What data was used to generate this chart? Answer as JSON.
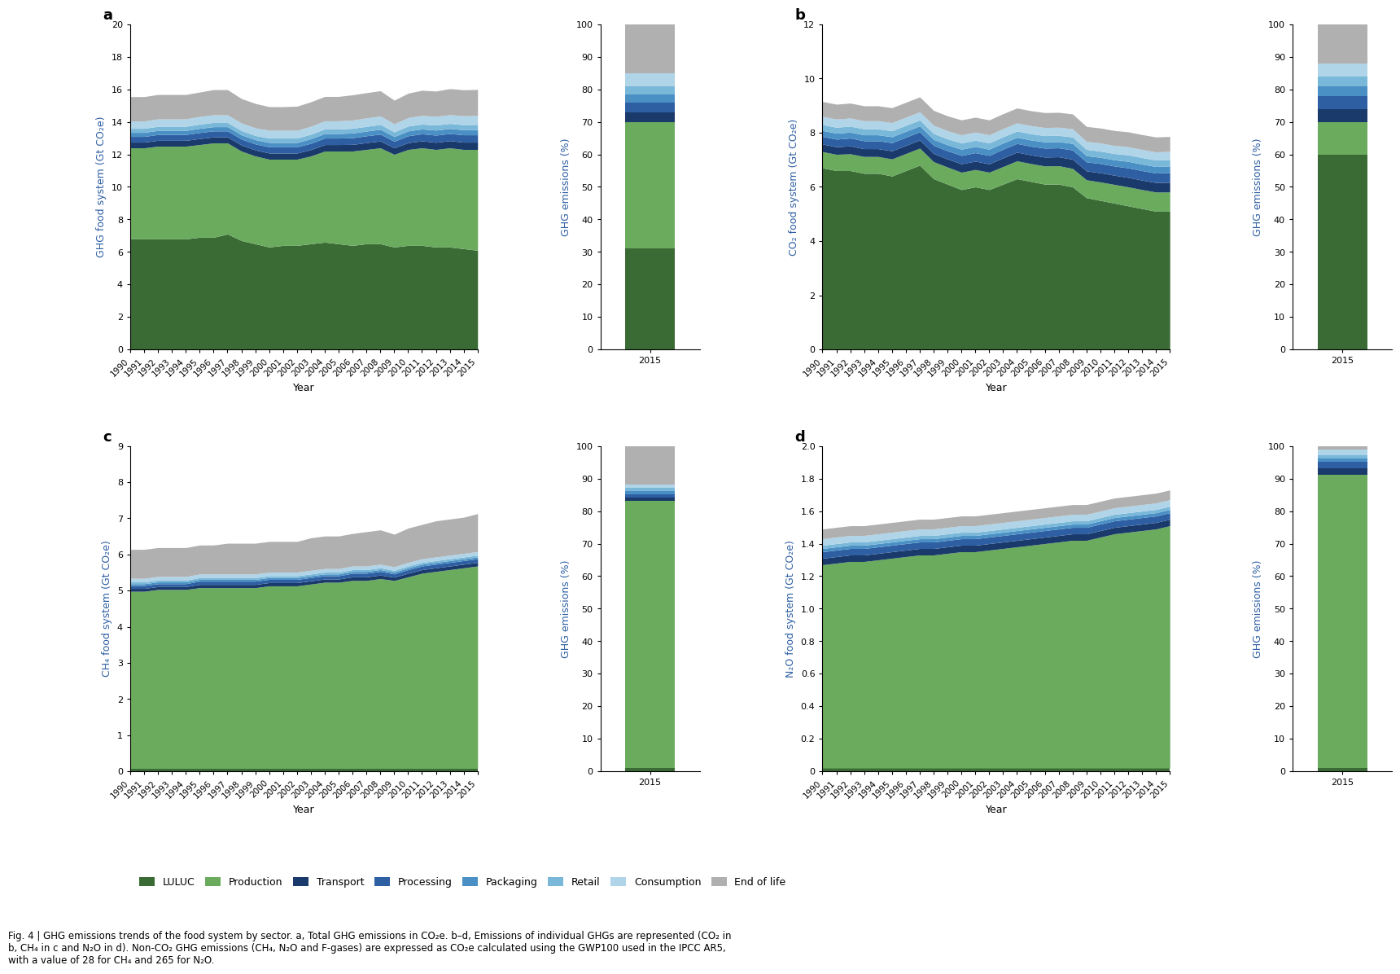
{
  "years": [
    1990,
    1991,
    1992,
    1993,
    1994,
    1995,
    1996,
    1997,
    1998,
    1999,
    2000,
    2001,
    2002,
    2003,
    2004,
    2005,
    2006,
    2007,
    2008,
    2009,
    2010,
    2011,
    2012,
    2013,
    2014,
    2015
  ],
  "sectors": [
    "LULUC",
    "Production",
    "Transport",
    "Processing",
    "Packaging",
    "Retail",
    "Consumption",
    "End of life"
  ],
  "colors": [
    "#3a6b35",
    "#6aab5e",
    "#1a3a6b",
    "#2e5fa3",
    "#4a90c4",
    "#7ab8d9",
    "#b0d4e8",
    "#b0b0b0"
  ],
  "panel_a": {
    "title": "a",
    "ylabel": "GHG food system (Gt CO₂e)",
    "ylim": [
      0,
      20
    ],
    "yticks": [
      0,
      2,
      4,
      6,
      8,
      10,
      12,
      14,
      16,
      18,
      20
    ],
    "data": [
      [
        6.8,
        6.8,
        6.8,
        6.8,
        6.8,
        6.9,
        6.9,
        7.1,
        6.7,
        6.5,
        6.3,
        6.4,
        6.4,
        6.5,
        6.6,
        6.5,
        6.4,
        6.5,
        6.5,
        6.3,
        6.4,
        6.4,
        6.3,
        6.3,
        6.2,
        6.1
      ],
      [
        5.6,
        5.6,
        5.7,
        5.7,
        5.7,
        5.7,
        5.8,
        5.6,
        5.5,
        5.4,
        5.4,
        5.3,
        5.3,
        5.4,
        5.6,
        5.7,
        5.8,
        5.8,
        5.9,
        5.7,
        5.9,
        6.0,
        6.0,
        6.1,
        6.1,
        6.2
      ],
      [
        0.35,
        0.35,
        0.36,
        0.36,
        0.36,
        0.37,
        0.37,
        0.37,
        0.37,
        0.37,
        0.38,
        0.38,
        0.38,
        0.39,
        0.4,
        0.4,
        0.41,
        0.42,
        0.42,
        0.4,
        0.42,
        0.43,
        0.44,
        0.44,
        0.45,
        0.45
      ],
      [
        0.35,
        0.35,
        0.36,
        0.36,
        0.36,
        0.37,
        0.37,
        0.37,
        0.37,
        0.37,
        0.38,
        0.38,
        0.38,
        0.39,
        0.4,
        0.4,
        0.41,
        0.42,
        0.42,
        0.4,
        0.42,
        0.43,
        0.44,
        0.44,
        0.45,
        0.45
      ],
      [
        0.25,
        0.25,
        0.25,
        0.25,
        0.25,
        0.26,
        0.26,
        0.26,
        0.26,
        0.26,
        0.27,
        0.27,
        0.27,
        0.28,
        0.28,
        0.28,
        0.29,
        0.29,
        0.3,
        0.29,
        0.3,
        0.3,
        0.31,
        0.31,
        0.31,
        0.32
      ],
      [
        0.25,
        0.25,
        0.25,
        0.25,
        0.25,
        0.26,
        0.26,
        0.26,
        0.26,
        0.26,
        0.27,
        0.27,
        0.27,
        0.28,
        0.28,
        0.28,
        0.29,
        0.29,
        0.3,
        0.29,
        0.3,
        0.3,
        0.31,
        0.31,
        0.31,
        0.32
      ],
      [
        0.45,
        0.45,
        0.46,
        0.46,
        0.46,
        0.47,
        0.47,
        0.47,
        0.47,
        0.47,
        0.48,
        0.48,
        0.48,
        0.49,
        0.5,
        0.5,
        0.51,
        0.52,
        0.52,
        0.5,
        0.52,
        0.53,
        0.54,
        0.54,
        0.55,
        0.55
      ],
      [
        1.5,
        1.5,
        1.5,
        1.5,
        1.5,
        1.5,
        1.55,
        1.55,
        1.5,
        1.5,
        1.45,
        1.45,
        1.48,
        1.5,
        1.5,
        1.5,
        1.55,
        1.55,
        1.55,
        1.45,
        1.5,
        1.55,
        1.55,
        1.6,
        1.6,
        1.6
      ]
    ],
    "bar_data": [
      31,
      39,
      3,
      3,
      2.5,
      2.5,
      4,
      15
    ]
  },
  "panel_b": {
    "title": "b",
    "ylabel": "CO₂ food system (Gt CO₂e)",
    "ylim": [
      0,
      12
    ],
    "yticks": [
      0,
      2,
      4,
      6,
      8,
      10,
      12
    ],
    "data": [
      [
        6.7,
        6.6,
        6.6,
        6.5,
        6.5,
        6.4,
        6.6,
        6.8,
        6.3,
        6.1,
        5.9,
        6.0,
        5.9,
        6.1,
        6.3,
        6.2,
        6.1,
        6.1,
        6.0,
        5.6,
        5.5,
        5.4,
        5.3,
        5.2,
        5.1,
        5.1
      ],
      [
        0.6,
        0.6,
        0.62,
        0.62,
        0.62,
        0.63,
        0.63,
        0.63,
        0.63,
        0.63,
        0.64,
        0.64,
        0.64,
        0.65,
        0.66,
        0.66,
        0.67,
        0.68,
        0.68,
        0.66,
        0.68,
        0.69,
        0.7,
        0.7,
        0.71,
        0.71
      ],
      [
        0.28,
        0.28,
        0.29,
        0.29,
        0.29,
        0.3,
        0.3,
        0.3,
        0.3,
        0.3,
        0.31,
        0.31,
        0.31,
        0.32,
        0.32,
        0.32,
        0.33,
        0.33,
        0.34,
        0.33,
        0.34,
        0.34,
        0.35,
        0.35,
        0.35,
        0.36
      ],
      [
        0.28,
        0.28,
        0.29,
        0.29,
        0.29,
        0.3,
        0.3,
        0.3,
        0.3,
        0.3,
        0.31,
        0.31,
        0.31,
        0.32,
        0.32,
        0.32,
        0.33,
        0.33,
        0.34,
        0.33,
        0.34,
        0.34,
        0.35,
        0.35,
        0.35,
        0.36
      ],
      [
        0.22,
        0.22,
        0.22,
        0.22,
        0.22,
        0.22,
        0.22,
        0.22,
        0.22,
        0.22,
        0.23,
        0.23,
        0.23,
        0.23,
        0.23,
        0.23,
        0.23,
        0.23,
        0.24,
        0.23,
        0.23,
        0.23,
        0.24,
        0.24,
        0.24,
        0.24
      ],
      [
        0.22,
        0.22,
        0.22,
        0.22,
        0.22,
        0.22,
        0.22,
        0.22,
        0.22,
        0.22,
        0.23,
        0.23,
        0.23,
        0.23,
        0.23,
        0.23,
        0.23,
        0.23,
        0.24,
        0.23,
        0.23,
        0.23,
        0.24,
        0.24,
        0.24,
        0.24
      ],
      [
        0.3,
        0.3,
        0.3,
        0.3,
        0.3,
        0.3,
        0.3,
        0.3,
        0.3,
        0.3,
        0.3,
        0.3,
        0.3,
        0.3,
        0.3,
        0.3,
        0.3,
        0.3,
        0.3,
        0.3,
        0.3,
        0.3,
        0.3,
        0.3,
        0.3,
        0.3
      ],
      [
        0.55,
        0.55,
        0.55,
        0.55,
        0.55,
        0.55,
        0.55,
        0.55,
        0.55,
        0.55,
        0.55,
        0.55,
        0.55,
        0.55,
        0.55,
        0.55,
        0.55,
        0.55,
        0.55,
        0.55,
        0.55,
        0.55,
        0.55,
        0.55,
        0.55,
        0.55
      ]
    ],
    "bar_data": [
      60,
      10,
      4,
      4,
      3,
      3,
      4,
      12
    ]
  },
  "panel_c": {
    "title": "c",
    "ylabel": "CH₄ food system (Gt CO₂e)",
    "ylim": [
      0,
      9
    ],
    "yticks": [
      0,
      1,
      2,
      3,
      4,
      5,
      6,
      7,
      8,
      9
    ],
    "data": [
      [
        0.08,
        0.08,
        0.08,
        0.08,
        0.08,
        0.08,
        0.08,
        0.08,
        0.08,
        0.08,
        0.08,
        0.08,
        0.08,
        0.08,
        0.08,
        0.08,
        0.08,
        0.08,
        0.08,
        0.08,
        0.08,
        0.08,
        0.08,
        0.08,
        0.08,
        0.08
      ],
      [
        4.9,
        4.9,
        4.95,
        4.95,
        4.95,
        5.0,
        5.0,
        5.0,
        5.0,
        5.0,
        5.05,
        5.05,
        5.05,
        5.1,
        5.15,
        5.15,
        5.2,
        5.2,
        5.25,
        5.2,
        5.3,
        5.4,
        5.45,
        5.5,
        5.55,
        5.6
      ],
      [
        0.08,
        0.08,
        0.08,
        0.08,
        0.08,
        0.09,
        0.09,
        0.09,
        0.09,
        0.09,
        0.09,
        0.09,
        0.09,
        0.09,
        0.09,
        0.09,
        0.1,
        0.1,
        0.1,
        0.09,
        0.1,
        0.1,
        0.1,
        0.1,
        0.1,
        0.1
      ],
      [
        0.08,
        0.08,
        0.08,
        0.08,
        0.08,
        0.09,
        0.09,
        0.09,
        0.09,
        0.09,
        0.09,
        0.09,
        0.09,
        0.09,
        0.09,
        0.09,
        0.1,
        0.1,
        0.1,
        0.09,
        0.1,
        0.1,
        0.1,
        0.1,
        0.1,
        0.1
      ],
      [
        0.05,
        0.05,
        0.05,
        0.05,
        0.05,
        0.05,
        0.05,
        0.05,
        0.05,
        0.05,
        0.05,
        0.05,
        0.05,
        0.05,
        0.05,
        0.05,
        0.05,
        0.05,
        0.05,
        0.05,
        0.05,
        0.05,
        0.05,
        0.05,
        0.05,
        0.05
      ],
      [
        0.05,
        0.05,
        0.05,
        0.05,
        0.05,
        0.05,
        0.05,
        0.05,
        0.05,
        0.05,
        0.05,
        0.05,
        0.05,
        0.05,
        0.05,
        0.05,
        0.05,
        0.05,
        0.05,
        0.05,
        0.05,
        0.05,
        0.05,
        0.05,
        0.05,
        0.05
      ],
      [
        0.1,
        0.1,
        0.1,
        0.1,
        0.1,
        0.1,
        0.1,
        0.1,
        0.1,
        0.1,
        0.1,
        0.1,
        0.1,
        0.1,
        0.1,
        0.1,
        0.1,
        0.1,
        0.1,
        0.1,
        0.1,
        0.1,
        0.1,
        0.1,
        0.1,
        0.1
      ],
      [
        0.8,
        0.8,
        0.8,
        0.8,
        0.8,
        0.8,
        0.8,
        0.85,
        0.85,
        0.85,
        0.85,
        0.85,
        0.85,
        0.9,
        0.9,
        0.9,
        0.9,
        0.95,
        0.95,
        0.9,
        0.95,
        0.95,
        1.0,
        1.0,
        1.0,
        1.05
      ]
    ],
    "bar_data": [
      1,
      83,
      1,
      1,
      1,
      1,
      1,
      12
    ]
  },
  "panel_d": {
    "title": "d",
    "ylabel": "N₂O food system (Gt CO₂e)",
    "ylim": [
      0,
      2.0
    ],
    "yticks": [
      0,
      0.2,
      0.4,
      0.6,
      0.8,
      1.0,
      1.2,
      1.4,
      1.6,
      1.8,
      2.0
    ],
    "data": [
      [
        0.02,
        0.02,
        0.02,
        0.02,
        0.02,
        0.02,
        0.02,
        0.02,
        0.02,
        0.02,
        0.02,
        0.02,
        0.02,
        0.02,
        0.02,
        0.02,
        0.02,
        0.02,
        0.02,
        0.02,
        0.02,
        0.02,
        0.02,
        0.02,
        0.02,
        0.02
      ],
      [
        1.25,
        1.26,
        1.27,
        1.27,
        1.28,
        1.29,
        1.3,
        1.31,
        1.31,
        1.32,
        1.33,
        1.33,
        1.34,
        1.35,
        1.36,
        1.37,
        1.38,
        1.39,
        1.4,
        1.4,
        1.42,
        1.44,
        1.45,
        1.46,
        1.47,
        1.49
      ],
      [
        0.04,
        0.04,
        0.04,
        0.04,
        0.04,
        0.04,
        0.04,
        0.04,
        0.04,
        0.04,
        0.04,
        0.04,
        0.04,
        0.04,
        0.04,
        0.04,
        0.04,
        0.04,
        0.04,
        0.04,
        0.04,
        0.04,
        0.04,
        0.04,
        0.04,
        0.04
      ],
      [
        0.04,
        0.04,
        0.04,
        0.04,
        0.04,
        0.04,
        0.04,
        0.04,
        0.04,
        0.04,
        0.04,
        0.04,
        0.04,
        0.04,
        0.04,
        0.04,
        0.04,
        0.04,
        0.04,
        0.04,
        0.04,
        0.04,
        0.04,
        0.04,
        0.04,
        0.04
      ],
      [
        0.02,
        0.02,
        0.02,
        0.02,
        0.02,
        0.02,
        0.02,
        0.02,
        0.02,
        0.02,
        0.02,
        0.02,
        0.02,
        0.02,
        0.02,
        0.02,
        0.02,
        0.02,
        0.02,
        0.02,
        0.02,
        0.02,
        0.02,
        0.02,
        0.02,
        0.02
      ],
      [
        0.02,
        0.02,
        0.02,
        0.02,
        0.02,
        0.02,
        0.02,
        0.02,
        0.02,
        0.02,
        0.02,
        0.02,
        0.02,
        0.02,
        0.02,
        0.02,
        0.02,
        0.02,
        0.02,
        0.02,
        0.02,
        0.02,
        0.02,
        0.02,
        0.02,
        0.02
      ],
      [
        0.04,
        0.04,
        0.04,
        0.04,
        0.04,
        0.04,
        0.04,
        0.04,
        0.04,
        0.04,
        0.04,
        0.04,
        0.04,
        0.04,
        0.04,
        0.04,
        0.04,
        0.04,
        0.04,
        0.04,
        0.04,
        0.04,
        0.04,
        0.04,
        0.04,
        0.04
      ],
      [
        0.06,
        0.06,
        0.06,
        0.06,
        0.06,
        0.06,
        0.06,
        0.06,
        0.06,
        0.06,
        0.06,
        0.06,
        0.06,
        0.06,
        0.06,
        0.06,
        0.06,
        0.06,
        0.06,
        0.06,
        0.06,
        0.06,
        0.06,
        0.06,
        0.06,
        0.06
      ]
    ],
    "bar_data": [
      1,
      92,
      2,
      2,
      1,
      1,
      2,
      1
    ]
  },
  "background_color": "#ffffff",
  "legend_labels": [
    "LULUC",
    "Production",
    "Transport",
    "Processing",
    "Packaging",
    "Retail",
    "Consumption",
    "End of life"
  ],
  "caption": "Fig. 4 | GHG emissions trends of the food system by sector. a, Total GHG emissions in CO₂e. b–d, Emissions of individual GHGs are represented (CO₂ in\nb, CH₄ in c and N₂O in d). Non-CO₂ GHG emissions (CH₄, N₂O and F-gases) are expressed as CO₂e calculated using the GWP100 used in the IPCC AR5,\nwith a value of 28 for CH₄ and 265 for N₂O."
}
